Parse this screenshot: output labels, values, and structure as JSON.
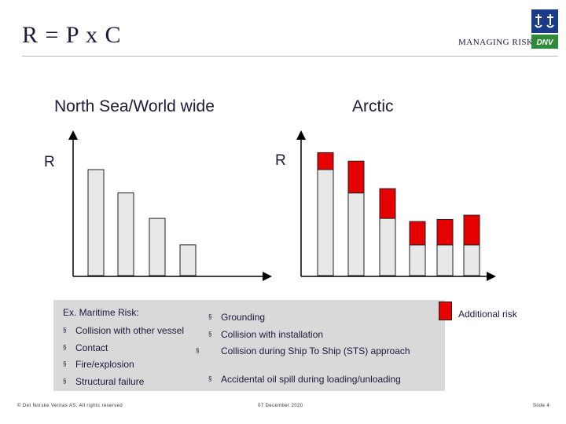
{
  "header": {
    "title": "R = P x C",
    "tagline": "MANAGING RISK",
    "logo_text": "DNV"
  },
  "chart_headings": {
    "left": "North Sea/World wide",
    "right": "Arctic",
    "left_axis_label": "R",
    "right_axis_label": "R"
  },
  "colors": {
    "bar_fill": "#e8e8e8",
    "additional_risk": "#e60000",
    "text": "#1a1a3a",
    "box_bg": "#d9d9d9"
  },
  "chart_data": {
    "type": "bar",
    "categories": [
      "Collision with other vessel",
      "Contact",
      "Fire/explosion",
      "Structural failure",
      "Grounding",
      "Collision with installation",
      "Collision during Ship To Ship (STS) approach",
      "Accidental oil spill during loading/unloading"
    ],
    "north_sea": {
      "values": [
        100,
        78,
        54,
        29
      ]
    },
    "arctic": {
      "base": [
        100,
        78,
        54,
        29,
        29,
        29
      ],
      "additional": [
        16,
        30,
        28,
        22,
        24,
        28
      ]
    },
    "title": "",
    "xlabel": "",
    "ylabel": "R"
  },
  "risk_panel": {
    "heading": "Ex. Maritime Risk:",
    "col1": [
      "Collision with other vessel",
      "Contact",
      "Fire/explosion",
      "Structural failure"
    ],
    "col2": [
      "Grounding",
      "Collision with installation",
      "Collision during Ship To Ship (STS) approach",
      "Accidental oil spill during loading/unloading"
    ],
    "bullet": "§"
  },
  "legend": {
    "additional_risk": "Additional risk"
  },
  "footer": {
    "copyright": "© Det Norske Veritas AS. All rights reserved",
    "date": "07 December 2020",
    "slide": "Slide 4"
  }
}
